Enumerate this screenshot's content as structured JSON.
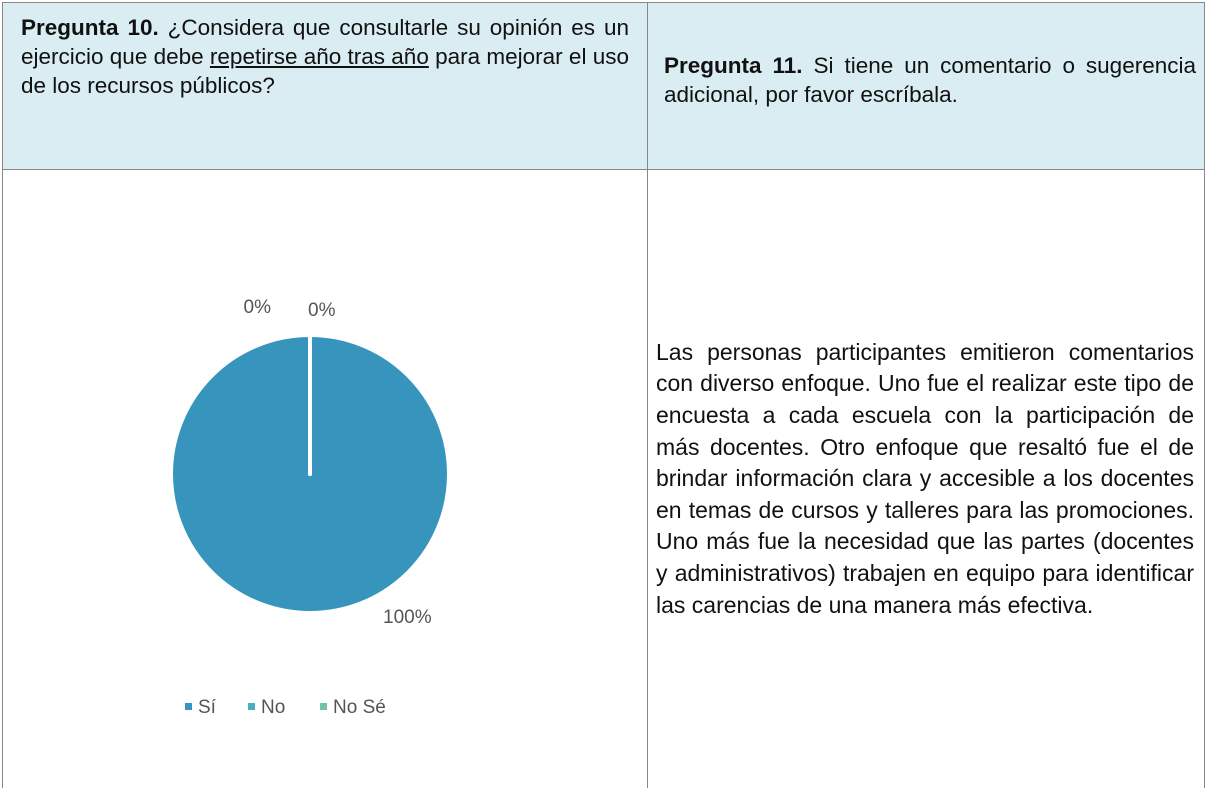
{
  "table": {
    "headers": [
      {
        "label": "Pregunta 10.",
        "parts": [
          "¿Considera que consultarle su opinión es un ejercicio que debe",
          "repetirse año tras año",
          "para mejorar el uso de los recursos públicos?"
        ]
      },
      {
        "label": "Pregunta 11.",
        "parts": [
          "Si tiene un comentario o sugerencia adicional, por favor escríbala."
        ]
      }
    ],
    "comment": "Las personas participantes emitieron comentarios con diverso enfoque. Uno fue el realizar este tipo de encuesta a cada escuela con la participación de más docentes. Otro enfoque que resaltó fue el de brindar información clara y accesible a los docentes en temas de cursos y talleres para las promociones. Uno más fue la necesidad que las partes (docentes y administrativos) trabajen en equipo para identificar las carencias de una manera más efectiva."
  },
  "chart_data": {
    "type": "pie",
    "categories": [
      "Sí",
      "No",
      "No Sé"
    ],
    "values": [
      100,
      0,
      0
    ],
    "value_labels": [
      "100%",
      "0%",
      "0%"
    ],
    "colors": [
      "#3795bd",
      "#4bacc6",
      "#72c2a6"
    ],
    "legend": "bottom"
  }
}
